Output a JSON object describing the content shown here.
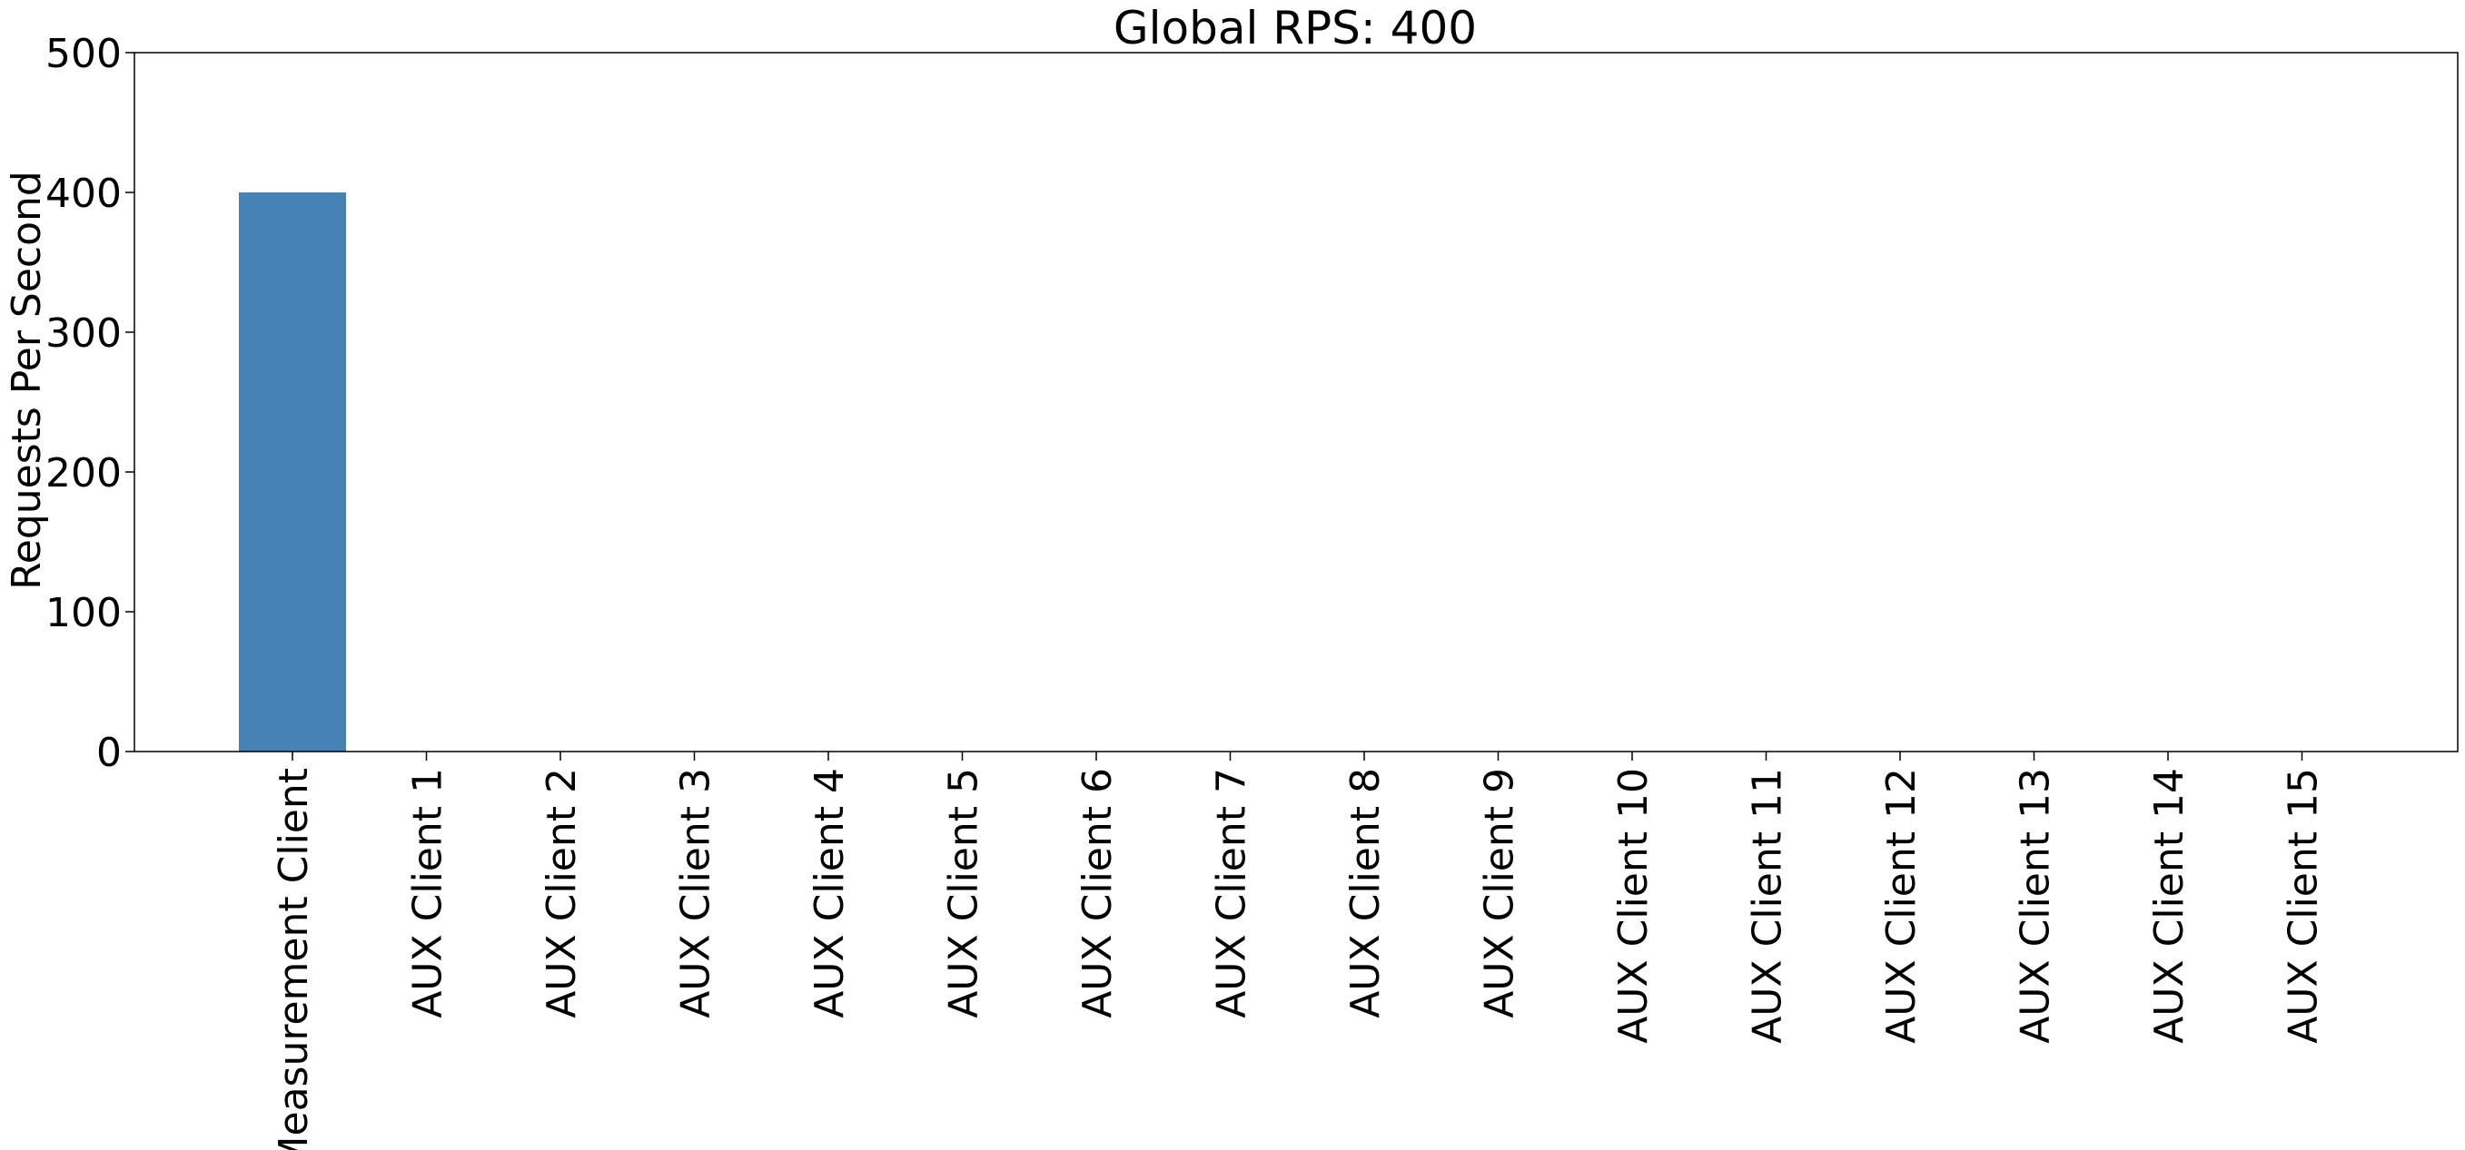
{
  "chart_data": {
    "type": "bar",
    "title": "Global RPS: 400",
    "xlabel": "",
    "ylabel": "Requests Per Second",
    "ylim": [
      0,
      500
    ],
    "yticks": [
      0,
      100,
      200,
      300,
      400,
      500
    ],
    "categories": [
      "Measurement Client",
      "AUX Client 1",
      "AUX Client 2",
      "AUX Client 3",
      "AUX Client 4",
      "AUX Client 5",
      "AUX Client 6",
      "AUX Client 7",
      "AUX Client 8",
      "AUX Client 9",
      "AUX Client 10",
      "AUX Client 11",
      "AUX Client 12",
      "AUX Client 13",
      "AUX Client 14",
      "AUX Client 15"
    ],
    "values": [
      400,
      0,
      0,
      0,
      0,
      0,
      0,
      0,
      0,
      0,
      0,
      0,
      0,
      0,
      0,
      0
    ],
    "bar_color": "#4682b4",
    "grid": false,
    "legend": "none"
  }
}
